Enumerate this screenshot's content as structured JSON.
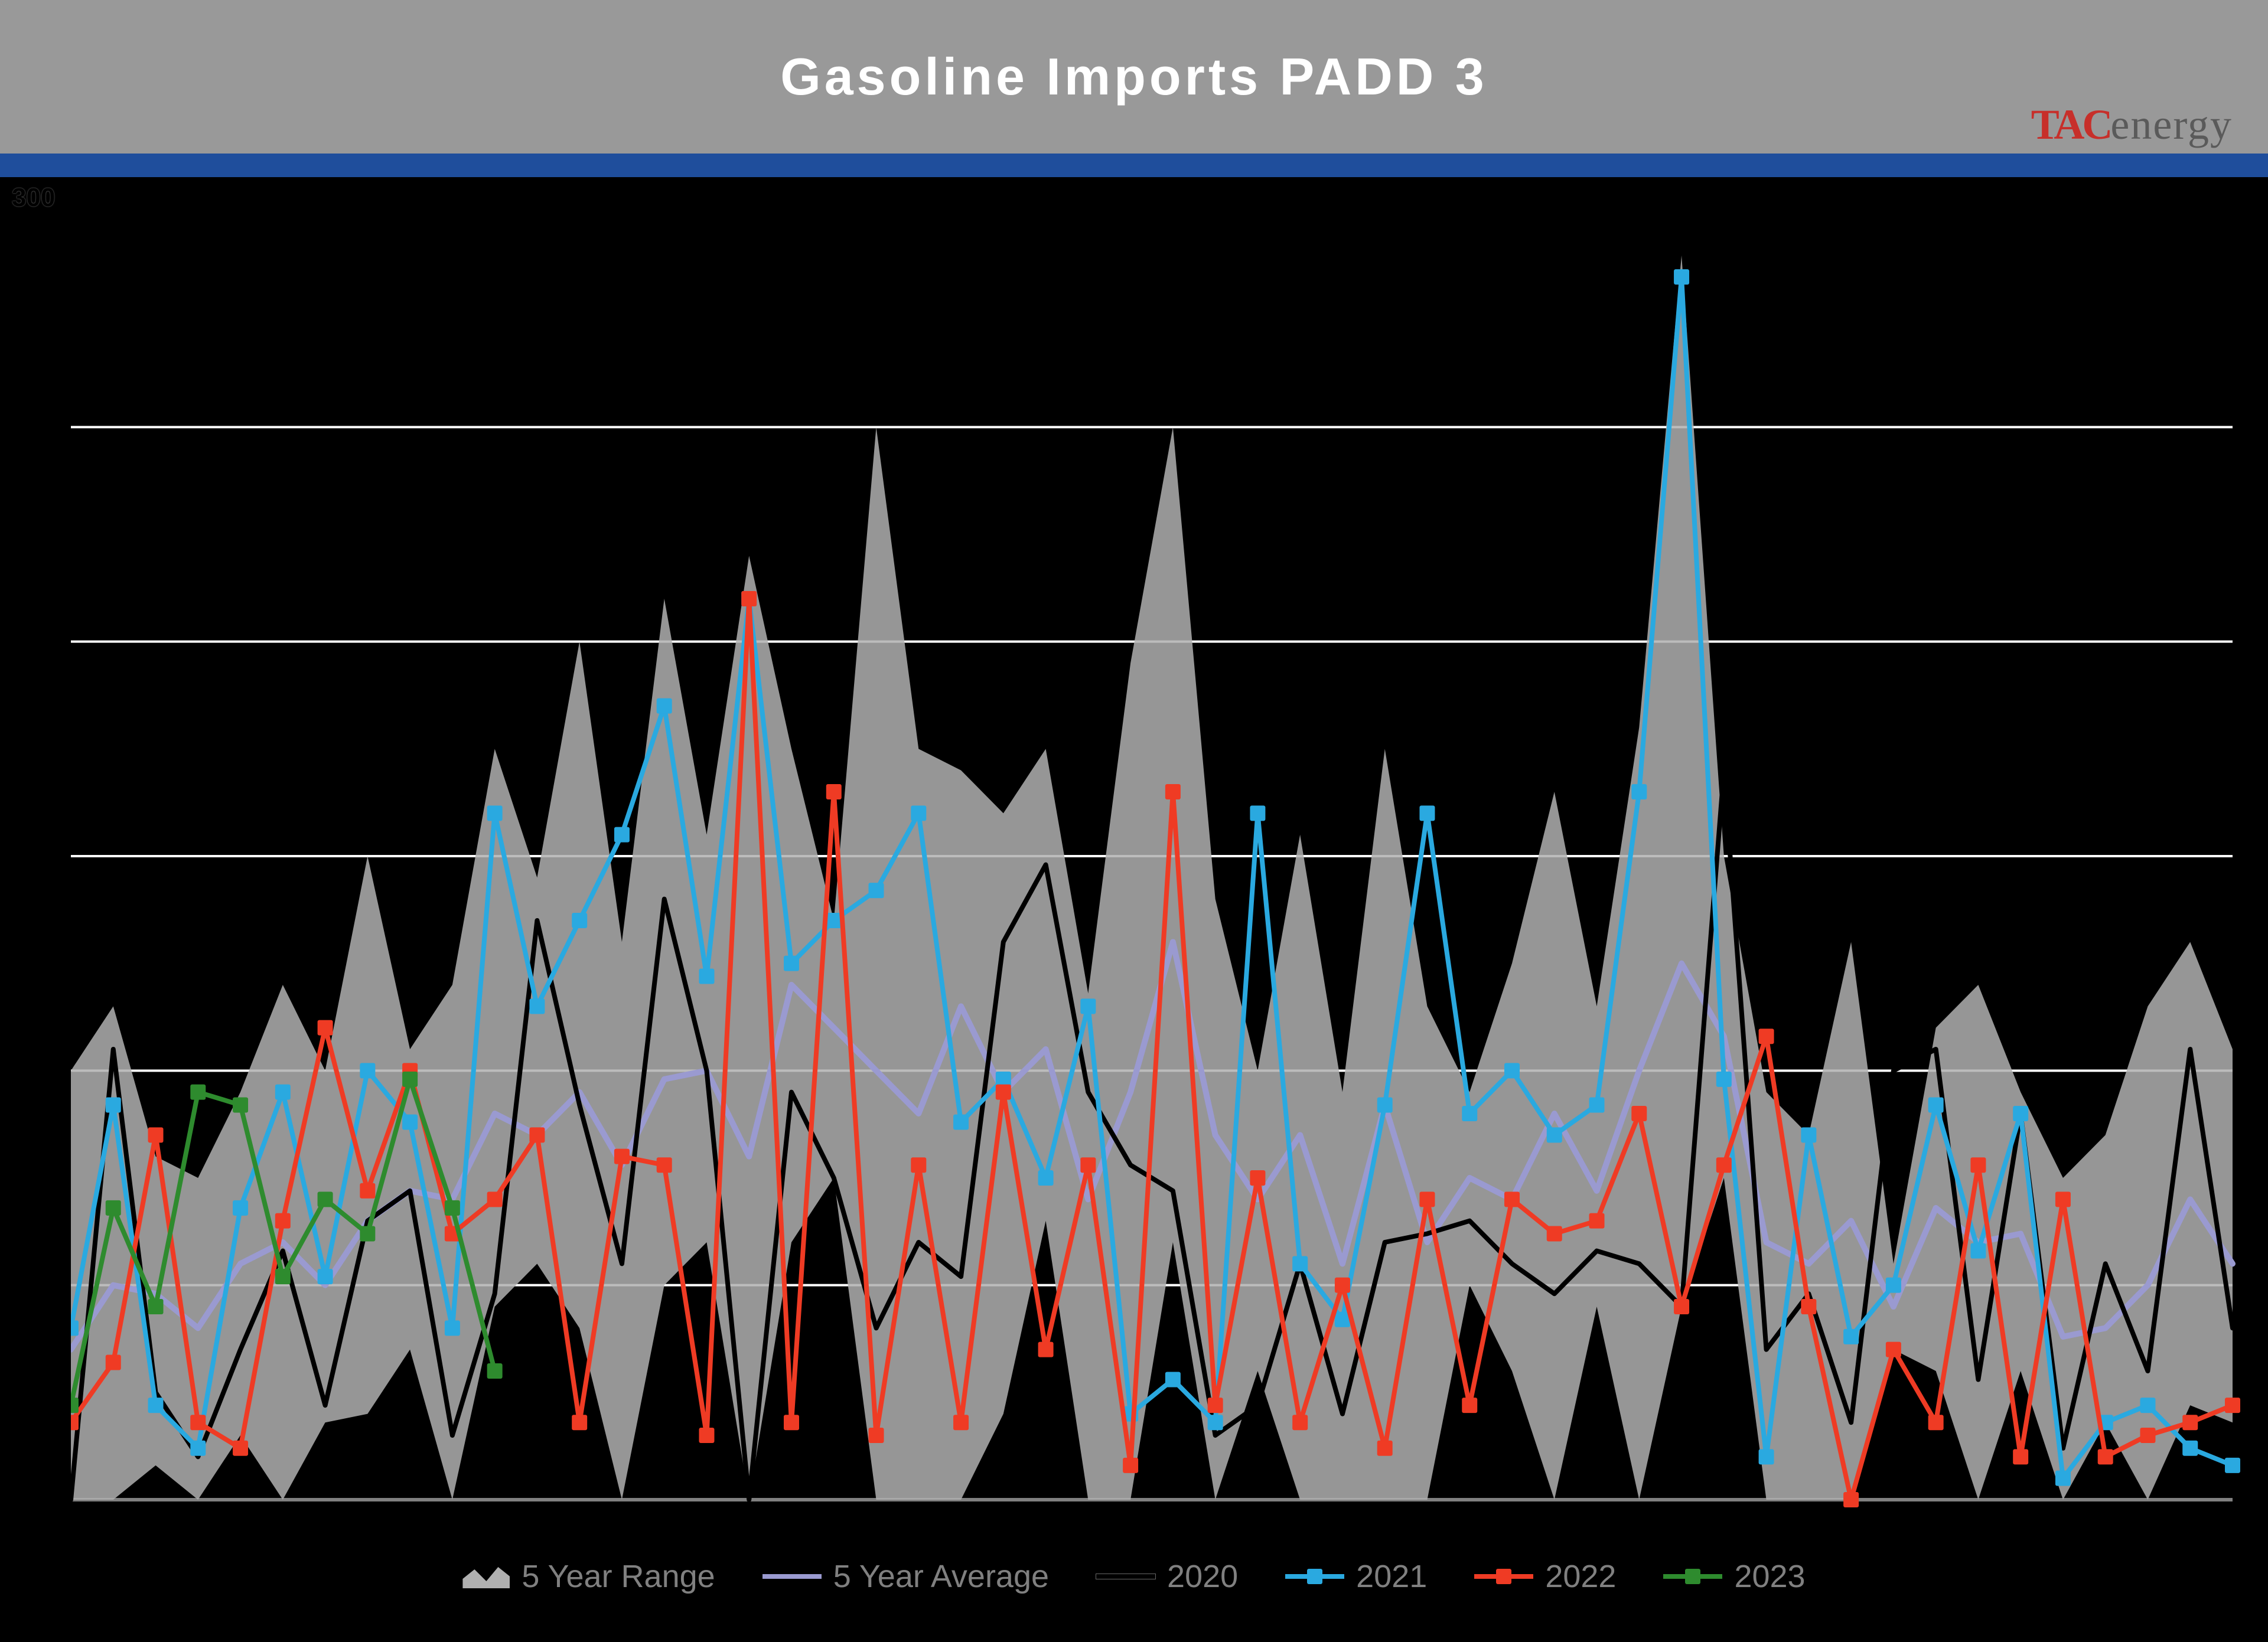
{
  "title": "Gasoline Imports PADD 3",
  "logo": {
    "brand": "TAC",
    "suffix": "energy"
  },
  "y_axis": {
    "label": "300",
    "min": 0,
    "max": 300,
    "gridlines": [
      50,
      100,
      150,
      200,
      250
    ]
  },
  "x_axis": {
    "weeks": 52
  },
  "chart": {
    "type": "line",
    "background_color": "#000000",
    "grid_color": "#ffffff",
    "title_bar_color": "#999999",
    "band_color": "#1f4e9c",
    "line_width": 8,
    "marker_size": 26,
    "series": {
      "range_high": {
        "label": "5 Year Range",
        "color": "#b0b0b0",
        "type": "area",
        "values": [
          100,
          115,
          80,
          75,
          95,
          120,
          100,
          150,
          105,
          120,
          175,
          145,
          200,
          130,
          210,
          155,
          220,
          175,
          135,
          250,
          175,
          170,
          160,
          175,
          118,
          195,
          250,
          140,
          100,
          155,
          95,
          175,
          115,
          95,
          125,
          165,
          115,
          180,
          290,
          150,
          95,
          85,
          130,
          55,
          110,
          120,
          95,
          75,
          85,
          115,
          130,
          105
        ]
      },
      "range_low": {
        "values": [
          0,
          0,
          8,
          0,
          15,
          0,
          18,
          20,
          35,
          0,
          45,
          55,
          40,
          0,
          50,
          60,
          0,
          60,
          75,
          0,
          0,
          0,
          20,
          65,
          0,
          0,
          60,
          0,
          30,
          0,
          0,
          0,
          0,
          50,
          30,
          0,
          45,
          0,
          45,
          75,
          0,
          0,
          0,
          35,
          30,
          0,
          30,
          0,
          18,
          0,
          22,
          18
        ]
      },
      "avg": {
        "label": "5 Year Average",
        "color": "#9a9ad0",
        "values": [
          35,
          50,
          48,
          40,
          55,
          60,
          50,
          65,
          72,
          70,
          90,
          85,
          95,
          78,
          98,
          100,
          80,
          120,
          110,
          100,
          90,
          115,
          95,
          105,
          70,
          95,
          130,
          85,
          70,
          85,
          55,
          92,
          60,
          75,
          70,
          90,
          72,
          100,
          125,
          108,
          60,
          55,
          65,
          45,
          68,
          60,
          62,
          38,
          40,
          50,
          70,
          55
        ]
      },
      "y2020": {
        "label": "2020",
        "color": "#000000",
        "values": [
          0,
          105,
          25,
          10,
          35,
          58,
          22,
          65,
          72,
          15,
          48,
          135,
          92,
          55,
          140,
          100,
          0,
          95,
          75,
          40,
          60,
          52,
          130,
          148,
          95,
          78,
          72,
          15,
          22,
          55,
          20,
          60,
          62,
          65,
          55,
          48,
          58,
          55,
          45,
          170,
          35,
          48,
          18,
          100,
          105,
          28,
          90,
          12,
          55,
          30,
          105,
          40
        ]
      },
      "y2021": {
        "label": "2021",
        "color": "#2aa9e0",
        "values": [
          40,
          92,
          22,
          12,
          68,
          95,
          52,
          100,
          88,
          40,
          160,
          115,
          135,
          155,
          185,
          122,
          210,
          125,
          135,
          142,
          160,
          88,
          98,
          75,
          115,
          20,
          28,
          18,
          160,
          55,
          42,
          92,
          160,
          90,
          100,
          85,
          92,
          165,
          285,
          98,
          10,
          85,
          38,
          50,
          92,
          58,
          90,
          5,
          18,
          22,
          12,
          8
        ]
      },
      "y2022": {
        "label": "2022",
        "color": "#ef3b24",
        "values": [
          18,
          32,
          85,
          18,
          12,
          65,
          110,
          72,
          100,
          62,
          70,
          85,
          18,
          80,
          78,
          15,
          210,
          18,
          165,
          15,
          78,
          18,
          95,
          35,
          78,
          8,
          165,
          22,
          75,
          18,
          50,
          12,
          70,
          22,
          70,
          62,
          65,
          90,
          45,
          78,
          108,
          45,
          0,
          35,
          18,
          78,
          10,
          70,
          10,
          15,
          18,
          22
        ]
      },
      "y2023": {
        "label": "2023",
        "color": "#2e8b2e",
        "values": [
          22,
          68,
          45,
          95,
          92,
          52,
          70,
          62,
          98,
          68,
          30
        ]
      }
    }
  },
  "legend": [
    {
      "label": "5 Year Range",
      "kind": "area",
      "color": "#b0b0b0"
    },
    {
      "label": "5 Year Average",
      "kind": "line",
      "color": "#9a9ad0"
    },
    {
      "label": "2020",
      "kind": "line",
      "color": "#000000"
    },
    {
      "label": "2021",
      "kind": "line-marker",
      "color": "#2aa9e0"
    },
    {
      "label": "2022",
      "kind": "line-marker",
      "color": "#ef3b24"
    },
    {
      "label": "2023",
      "kind": "line-marker",
      "color": "#2e8b2e"
    }
  ]
}
